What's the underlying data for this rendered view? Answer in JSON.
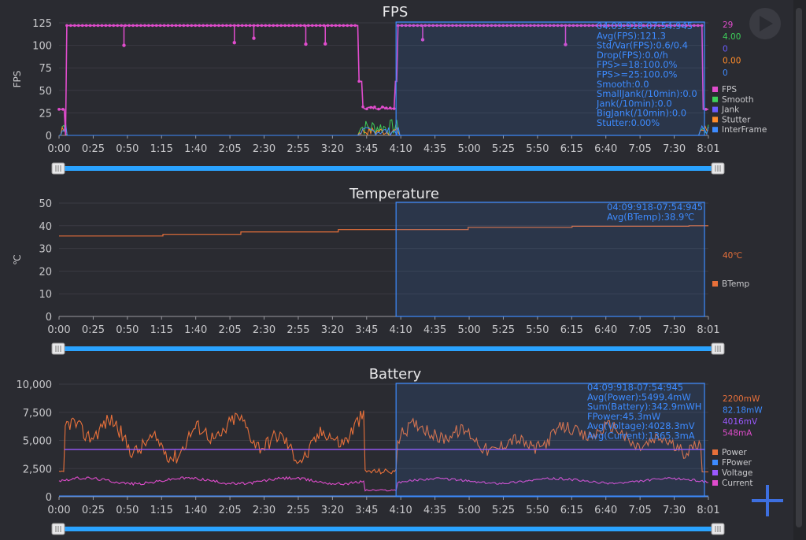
{
  "x_ticks": [
    "0:00",
    "0:25",
    "0:50",
    "1:15",
    "1:40",
    "2:05",
    "2:30",
    "2:55",
    "3:20",
    "3:45",
    "4:10",
    "4:35",
    "5:00",
    "5:25",
    "5:50",
    "6:15",
    "6:40",
    "7:05",
    "7:30",
    "8:01"
  ],
  "fps": {
    "title": "FPS",
    "ylabel": "FPS",
    "y_ticks": [
      "0",
      "25",
      "50",
      "75",
      "100",
      "125"
    ],
    "stats": [
      "04:09:918-07:54:945",
      "Avg(FPS):121.3",
      "Std/Var(FPS):0.6/0.4",
      "Drop(FPS):0.0/h",
      "FPS>=18:100.0%",
      "FPS>=25:100.0%",
      "Smooth:0.0",
      "SmallJank(/10min):0.0",
      "Jank(/10min):0.0",
      "BigJank(/10min):0.0",
      "Stutter:0.00%"
    ],
    "side_values": [
      {
        "text": "29",
        "color": "#e04ccc"
      },
      {
        "text": "4.00",
        "color": "#3ecf5a"
      },
      {
        "text": "0",
        "color": "#6a5cff"
      },
      {
        "text": "0.00",
        "color": "#ff8c2a"
      },
      {
        "text": "0",
        "color": "#3d8bff"
      }
    ],
    "legend": [
      {
        "label": "FPS",
        "color": "#e04ccc"
      },
      {
        "label": "Smooth",
        "color": "#3ecf5a"
      },
      {
        "label": "Jank",
        "color": "#6a5cff"
      },
      {
        "label": "Stutter",
        "color": "#ff8c2a"
      },
      {
        "label": "InterFrame",
        "color": "#3d8bff"
      }
    ]
  },
  "temperature": {
    "title": "Temperature",
    "ylabel": "℃",
    "y_ticks": [
      "0",
      "10",
      "20",
      "30",
      "40",
      "50"
    ],
    "stats": [
      "04:09:918-07:54:945",
      "Avg(BTemp):38.9℃"
    ],
    "side_values": [
      {
        "text": "40℃",
        "color": "#e8703a"
      }
    ],
    "legend": [
      {
        "label": "BTemp",
        "color": "#e8703a"
      }
    ]
  },
  "battery": {
    "title": "Battery",
    "y_ticks": [
      "0",
      "2,500",
      "5,000",
      "7,500",
      "10,000"
    ],
    "stats": [
      "04:09:918-07:54:945",
      "Avg(Power):5499.4mW",
      "Sum(Battery):342.9mWH",
      "FPower:45.3mW",
      "Avg(Voltage):4028.3mV",
      "Avg(Current):1365.3mA"
    ],
    "side_values": [
      {
        "text": "2200mW",
        "color": "#e8703a"
      },
      {
        "text": "82.18mW",
        "color": "#3d8bff"
      },
      {
        "text": "4016mV",
        "color": "#9b59ff"
      },
      {
        "text": "548mA",
        "color": "#e04ccc"
      }
    ],
    "legend": [
      {
        "label": "Power",
        "color": "#e8703a"
      },
      {
        "label": "FPower",
        "color": "#3d8bff"
      },
      {
        "label": "Voltage",
        "color": "#9b59ff"
      },
      {
        "label": "Current",
        "color": "#e04ccc"
      }
    ]
  },
  "colors": {
    "selection": "#3d8bff",
    "slider": "#2aa3ff",
    "axis": "#9a9aa0",
    "grid": "#3a3b42"
  },
  "icons": {
    "play": "play-icon",
    "add": "plus-icon"
  },
  "series": {
    "fps": {
      "low": [
        0,
        0.7,
        1.0
      ],
      "high_val": 122,
      "dip_val": 29,
      "seg": [
        [
          0.005,
          0.462
        ],
        [
          0.52,
          1.0
        ]
      ],
      "dip": [
        0.462,
        0.52
      ]
    },
    "temp": {
      "steps": [
        [
          0,
          35.5
        ],
        [
          0.16,
          36.2
        ],
        [
          0.28,
          37.3
        ],
        [
          0.43,
          38.3
        ],
        [
          0.63,
          39.3
        ],
        [
          0.79,
          39.8
        ],
        [
          0.97,
          40.0
        ]
      ]
    },
    "voltage": 4200,
    "current": 1400
  }
}
